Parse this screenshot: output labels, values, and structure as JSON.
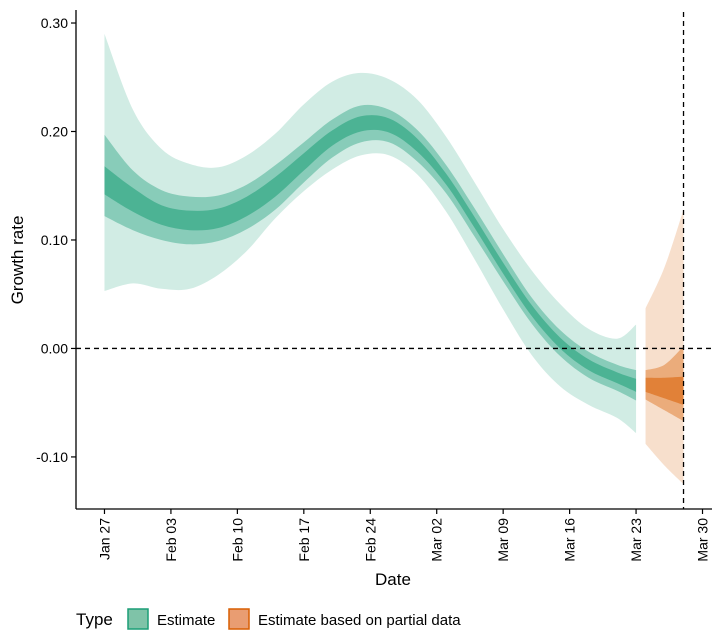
{
  "chart_data": {
    "type": "area",
    "xlabel": "Date",
    "ylabel": "Growth rate",
    "x_ticks": [
      "Jan 27",
      "Feb 03",
      "Feb 10",
      "Feb 17",
      "Feb 24",
      "Mar 02",
      "Mar 09",
      "Mar 16",
      "Mar 23",
      "Mar 30"
    ],
    "y_ticks": [
      -0.1,
      0.0,
      0.1,
      0.2,
      0.3
    ],
    "y_tick_labels": [
      "-0.10",
      "0.00",
      "0.10",
      "0.20",
      "0.30"
    ],
    "xlim": [
      "2020-01-24",
      "2020-03-31"
    ],
    "ylim": [
      -0.148,
      0.312
    ],
    "reference_lines": {
      "horizontal_y": 0.0,
      "vertical_date": "2020-03-28"
    },
    "grid": false,
    "legend": {
      "position": "bottom",
      "title": "Type",
      "entries": [
        "Estimate",
        "Estimate based on partial data"
      ]
    },
    "series": [
      {
        "name": "Estimate",
        "color": "#1b9e77",
        "points": [
          {
            "date": "2020-01-27",
            "median": 0.155,
            "lo20": 0.142,
            "hi20": 0.168,
            "lo50": 0.122,
            "hi50": 0.197,
            "lo90": 0.053,
            "hi90": 0.29
          },
          {
            "date": "2020-01-30",
            "median": 0.137,
            "lo20": 0.126,
            "hi20": 0.148,
            "lo50": 0.109,
            "hi50": 0.164,
            "lo90": 0.06,
            "hi90": 0.22
          },
          {
            "date": "2020-02-02",
            "median": 0.123,
            "lo20": 0.114,
            "hi20": 0.132,
            "lo50": 0.1,
            "hi50": 0.146,
            "lo90": 0.055,
            "hi90": 0.184
          },
          {
            "date": "2020-02-05",
            "median": 0.118,
            "lo20": 0.109,
            "hi20": 0.127,
            "lo50": 0.096,
            "hi50": 0.14,
            "lo90": 0.055,
            "hi90": 0.17
          },
          {
            "date": "2020-02-08",
            "median": 0.12,
            "lo20": 0.111,
            "hi20": 0.129,
            "lo50": 0.099,
            "hi50": 0.141,
            "lo90": 0.068,
            "hi90": 0.167
          },
          {
            "date": "2020-02-11",
            "median": 0.131,
            "lo20": 0.122,
            "hi20": 0.14,
            "lo50": 0.11,
            "hi50": 0.151,
            "lo90": 0.09,
            "hi90": 0.178
          },
          {
            "date": "2020-02-14",
            "median": 0.149,
            "lo20": 0.14,
            "hi20": 0.158,
            "lo50": 0.128,
            "hi50": 0.169,
            "lo90": 0.12,
            "hi90": 0.198
          },
          {
            "date": "2020-02-17",
            "median": 0.172,
            "lo20": 0.164,
            "hi20": 0.18,
            "lo50": 0.153,
            "hi50": 0.19,
            "lo90": 0.145,
            "hi90": 0.225
          },
          {
            "date": "2020-02-20",
            "median": 0.194,
            "lo20": 0.187,
            "hi20": 0.201,
            "lo50": 0.176,
            "hi50": 0.211,
            "lo90": 0.165,
            "hi90": 0.246
          },
          {
            "date": "2020-02-23",
            "median": 0.207,
            "lo20": 0.2,
            "hi20": 0.214,
            "lo50": 0.19,
            "hi50": 0.224,
            "lo90": 0.178,
            "hi90": 0.254
          },
          {
            "date": "2020-02-26",
            "median": 0.205,
            "lo20": 0.199,
            "hi20": 0.212,
            "lo50": 0.19,
            "hi50": 0.22,
            "lo90": 0.178,
            "hi90": 0.248
          },
          {
            "date": "2020-02-29",
            "median": 0.187,
            "lo20": 0.181,
            "hi20": 0.193,
            "lo50": 0.172,
            "hi50": 0.201,
            "lo90": 0.16,
            "hi90": 0.229
          },
          {
            "date": "2020-03-03",
            "median": 0.156,
            "lo20": 0.151,
            "hi20": 0.161,
            "lo50": 0.143,
            "hi50": 0.169,
            "lo90": 0.126,
            "hi90": 0.195
          },
          {
            "date": "2020-03-06",
            "median": 0.116,
            "lo20": 0.111,
            "hi20": 0.121,
            "lo50": 0.103,
            "hi50": 0.129,
            "lo90": 0.082,
            "hi90": 0.153
          },
          {
            "date": "2020-03-09",
            "median": 0.074,
            "lo20": 0.069,
            "hi20": 0.079,
            "lo50": 0.062,
            "hi50": 0.087,
            "lo90": 0.036,
            "hi90": 0.11
          },
          {
            "date": "2020-03-12",
            "median": 0.035,
            "lo20": 0.03,
            "hi20": 0.04,
            "lo50": 0.023,
            "hi50": 0.047,
            "lo90": -0.006,
            "hi90": 0.072
          },
          {
            "date": "2020-03-15",
            "median": 0.005,
            "lo20": 0.0,
            "hi20": 0.01,
            "lo50": -0.007,
            "hi50": 0.017,
            "lo90": -0.035,
            "hi90": 0.041
          },
          {
            "date": "2020-03-18",
            "median": -0.015,
            "lo20": -0.02,
            "hi20": -0.01,
            "lo50": -0.027,
            "hi50": -0.003,
            "lo90": -0.052,
            "hi90": 0.018
          },
          {
            "date": "2020-03-21",
            "median": -0.027,
            "lo20": -0.032,
            "hi20": -0.022,
            "lo50": -0.039,
            "hi50": -0.015,
            "lo90": -0.064,
            "hi90": 0.009
          },
          {
            "date": "2020-03-23",
            "median": -0.034,
            "lo20": -0.04,
            "hi20": -0.028,
            "lo50": -0.048,
            "hi50": -0.02,
            "lo90": -0.078,
            "hi90": 0.022
          }
        ]
      },
      {
        "name": "Estimate based on partial data",
        "color": "#d95f02",
        "points": [
          {
            "date": "2020-03-24",
            "median": -0.034,
            "lo20": -0.04,
            "hi20": -0.027,
            "lo50": -0.047,
            "hi50": -0.02,
            "lo90": -0.088,
            "hi90": 0.037
          },
          {
            "date": "2020-03-26",
            "median": -0.038,
            "lo20": -0.046,
            "hi20": -0.027,
            "lo50": -0.057,
            "hi50": -0.015,
            "lo90": -0.108,
            "hi90": 0.075
          },
          {
            "date": "2020-03-28",
            "median": -0.042,
            "lo20": -0.052,
            "hi20": -0.026,
            "lo50": -0.067,
            "hi50": 0.002,
            "lo90": -0.125,
            "hi90": 0.128
          }
        ]
      }
    ]
  }
}
